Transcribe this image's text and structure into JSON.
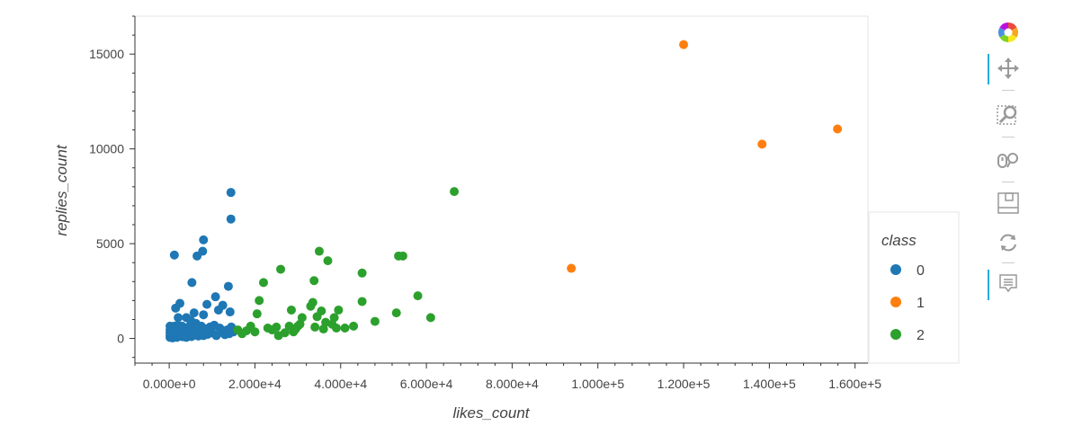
{
  "chart_data": {
    "type": "scatter",
    "xlabel": "likes_count",
    "ylabel": "replies_count",
    "xlim": [
      -8000,
      163000
    ],
    "ylim": [
      -1300,
      17000
    ],
    "x_ticks": [
      0,
      20000,
      40000,
      60000,
      80000,
      100000,
      120000,
      140000,
      160000
    ],
    "x_tick_labels": [
      "0.000e+0",
      "2.000e+4",
      "4.000e+4",
      "6.000e+4",
      "8.000e+4",
      "1.000e+5",
      "1.200e+5",
      "1.400e+5",
      "1.600e+5"
    ],
    "y_ticks": [
      0,
      5000,
      10000,
      15000
    ],
    "y_tick_labels": [
      "0",
      "5000",
      "10000",
      "15000"
    ],
    "grid": false,
    "legend": {
      "title": "class",
      "placement": "right"
    },
    "series": [
      {
        "name": "0",
        "color": "#1f77b4",
        "points": [
          [
            200,
            50
          ],
          [
            200,
            150
          ],
          [
            200,
            300
          ],
          [
            200,
            450
          ],
          [
            200,
            650
          ],
          [
            300,
            100
          ],
          [
            300,
            250
          ],
          [
            400,
            180
          ],
          [
            500,
            80
          ],
          [
            500,
            350
          ],
          [
            600,
            550
          ],
          [
            700,
            120
          ],
          [
            800,
            30
          ],
          [
            900,
            200
          ],
          [
            1000,
            400
          ],
          [
            1100,
            90
          ],
          [
            1200,
            650
          ],
          [
            1300,
            250
          ],
          [
            1500,
            150
          ],
          [
            1500,
            1600
          ],
          [
            1600,
            120
          ],
          [
            1700,
            480
          ],
          [
            1800,
            60
          ],
          [
            2000,
            300
          ],
          [
            2000,
            700
          ],
          [
            2100,
            1100
          ],
          [
            2200,
            180
          ],
          [
            2500,
            250
          ],
          [
            2500,
            550
          ],
          [
            2500,
            1850
          ],
          [
            2700,
            120
          ],
          [
            3000,
            400
          ],
          [
            3000,
            650
          ],
          [
            3200,
            90
          ],
          [
            3500,
            180
          ],
          [
            3500,
            450
          ],
          [
            3800,
            250
          ],
          [
            4000,
            1100
          ],
          [
            4000,
            60
          ],
          [
            4300,
            350
          ],
          [
            4500,
            600
          ],
          [
            4800,
            200
          ],
          [
            5000,
            400
          ],
          [
            5000,
            950
          ],
          [
            5200,
            100
          ],
          [
            5300,
            2950
          ],
          [
            5500,
            600
          ],
          [
            5800,
            1350
          ],
          [
            6000,
            300
          ],
          [
            6000,
            180
          ],
          [
            6200,
            800
          ],
          [
            6500,
            4350
          ],
          [
            6800,
            130
          ],
          [
            7000,
            500
          ],
          [
            7200,
            250
          ],
          [
            7500,
            650
          ],
          [
            7800,
            4600
          ],
          [
            8000,
            5200
          ],
          [
            8000,
            1250
          ],
          [
            8000,
            150
          ],
          [
            8200,
            350
          ],
          [
            8500,
            500
          ],
          [
            8800,
            1800
          ],
          [
            9000,
            220
          ],
          [
            9500,
            600
          ],
          [
            10000,
            300
          ],
          [
            10500,
            700
          ],
          [
            10800,
            2200
          ],
          [
            11000,
            150
          ],
          [
            11500,
            1500
          ],
          [
            11800,
            550
          ],
          [
            12000,
            350
          ],
          [
            12500,
            1750
          ],
          [
            13000,
            200
          ],
          [
            13500,
            450
          ],
          [
            13800,
            2750
          ],
          [
            14000,
            250
          ],
          [
            14200,
            1400
          ],
          [
            14400,
            7700
          ],
          [
            14400,
            6300
          ],
          [
            14500,
            600
          ],
          [
            15000,
            350
          ],
          [
            1200,
            4400
          ]
        ]
      },
      {
        "name": "1",
        "color": "#ff7f0e",
        "points": [
          [
            120000,
            15500
          ],
          [
            138300,
            10250
          ],
          [
            155900,
            11050
          ],
          [
            93800,
            3700
          ]
        ]
      },
      {
        "name": "2",
        "color": "#2ca02c",
        "points": [
          [
            16000,
            450
          ],
          [
            17000,
            250
          ],
          [
            18000,
            400
          ],
          [
            19000,
            650
          ],
          [
            20000,
            350
          ],
          [
            20500,
            1300
          ],
          [
            21000,
            2000
          ],
          [
            22000,
            2950
          ],
          [
            23000,
            550
          ],
          [
            24000,
            450
          ],
          [
            25000,
            600
          ],
          [
            25500,
            150
          ],
          [
            26000,
            3650
          ],
          [
            27000,
            300
          ],
          [
            28000,
            650
          ],
          [
            28500,
            1500
          ],
          [
            29000,
            350
          ],
          [
            29500,
            500
          ],
          [
            30000,
            650
          ],
          [
            30500,
            750
          ],
          [
            31000,
            1100
          ],
          [
            33000,
            1700
          ],
          [
            33500,
            1900
          ],
          [
            33800,
            3050
          ],
          [
            34000,
            600
          ],
          [
            34500,
            1150
          ],
          [
            35000,
            4600
          ],
          [
            35500,
            1450
          ],
          [
            36000,
            500
          ],
          [
            36500,
            850
          ],
          [
            37000,
            4100
          ],
          [
            38000,
            750
          ],
          [
            38500,
            1100
          ],
          [
            39000,
            550
          ],
          [
            39500,
            1500
          ],
          [
            41000,
            550
          ],
          [
            43000,
            650
          ],
          [
            45000,
            1950
          ],
          [
            45000,
            3450
          ],
          [
            48000,
            900
          ],
          [
            53000,
            1350
          ],
          [
            53500,
            4350
          ],
          [
            54500,
            4350
          ],
          [
            58000,
            2250
          ],
          [
            61000,
            1100
          ],
          [
            66500,
            7750
          ]
        ]
      }
    ]
  },
  "toolbar": {
    "tools": [
      {
        "icon": "bokeh-logo-icon"
      },
      {
        "icon": "pan-icon",
        "active": true
      },
      {
        "icon": "box-zoom-icon"
      },
      {
        "icon": "wheel-zoom-icon"
      },
      {
        "icon": "save-icon"
      },
      {
        "icon": "reset-icon"
      },
      {
        "icon": "hover-icon",
        "active": true
      }
    ]
  }
}
